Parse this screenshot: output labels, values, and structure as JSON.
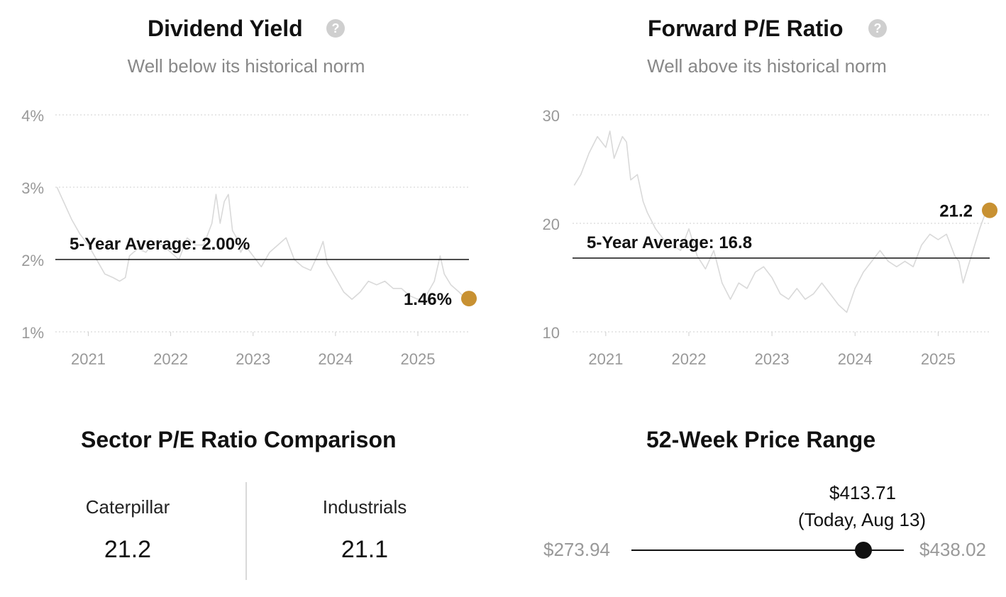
{
  "chart_data": [
    {
      "type": "line",
      "title": "Dividend Yield",
      "subtitle": "Well below its historical norm",
      "y_ticks": [
        "4%",
        "3%",
        "2%",
        "1%"
      ],
      "y_tick_values": [
        4,
        3,
        2,
        1
      ],
      "ylim": [
        1,
        4
      ],
      "x_ticks": [
        "2021",
        "2022",
        "2023",
        "2024",
        "2025"
      ],
      "x_tick_values": [
        2021,
        2022,
        2023,
        2024,
        2025
      ],
      "xlim": [
        2020.6,
        2025.62
      ],
      "grid": true,
      "average": {
        "value": 2.0,
        "label": "5-Year Average: 2.00%"
      },
      "current": {
        "x": 2025.62,
        "y": 1.46,
        "label": "1.46%"
      },
      "color_line": "#d9d9d9",
      "color_marker": "#c89132",
      "series": [
        {
          "x": [
            2020.62,
            2020.7,
            2020.8,
            2020.9,
            2021.0,
            2021.1,
            2021.2,
            2021.3,
            2021.38,
            2021.45,
            2021.5,
            2021.6,
            2021.7,
            2021.8,
            2021.9,
            2022.0,
            2022.1,
            2022.2,
            2022.3,
            2022.4,
            2022.5,
            2022.55,
            2022.6,
            2022.65,
            2022.7,
            2022.75,
            2022.8,
            2022.85,
            2022.9,
            2023.0,
            2023.1,
            2023.2,
            2023.3,
            2023.4,
            2023.5,
            2023.6,
            2023.7,
            2023.8,
            2023.85,
            2023.9,
            2024.0,
            2024.1,
            2024.2,
            2024.3,
            2024.4,
            2024.5,
            2024.6,
            2024.7,
            2024.8,
            2024.9,
            2025.0,
            2025.1,
            2025.2,
            2025.27,
            2025.32,
            2025.4,
            2025.5,
            2025.58
          ],
          "y": [
            3.0,
            2.8,
            2.55,
            2.35,
            2.2,
            2.0,
            1.8,
            1.75,
            1.7,
            1.75,
            2.05,
            2.15,
            2.1,
            2.25,
            2.2,
            2.1,
            2.0,
            2.3,
            2.2,
            2.2,
            2.5,
            2.9,
            2.5,
            2.8,
            2.9,
            2.4,
            2.3,
            2.1,
            2.2,
            2.05,
            1.9,
            2.1,
            2.2,
            2.3,
            2.0,
            1.9,
            1.85,
            2.1,
            2.25,
            1.95,
            1.75,
            1.55,
            1.45,
            1.55,
            1.7,
            1.65,
            1.7,
            1.6,
            1.6,
            1.5,
            1.45,
            1.5,
            1.7,
            2.05,
            1.8,
            1.65,
            1.55,
            1.46
          ]
        }
      ]
    },
    {
      "type": "line",
      "title": "Forward P/E Ratio",
      "subtitle": "Well above its historical norm",
      "y_ticks": [
        "30",
        "20",
        "10"
      ],
      "y_tick_values": [
        30,
        20,
        10
      ],
      "ylim": [
        10,
        30
      ],
      "x_ticks": [
        "2021",
        "2022",
        "2023",
        "2024",
        "2025"
      ],
      "x_tick_values": [
        2021,
        2022,
        2023,
        2024,
        2025
      ],
      "xlim": [
        2020.6,
        2025.62
      ],
      "grid": true,
      "average": {
        "value": 16.8,
        "label": "5-Year Average: 16.8"
      },
      "current": {
        "x": 2025.62,
        "y": 21.2,
        "label": "21.2"
      },
      "color_line": "#d9d9d9",
      "color_marker": "#c89132",
      "series": [
        {
          "x": [
            2020.62,
            2020.7,
            2020.8,
            2020.9,
            2021.0,
            2021.05,
            2021.1,
            2021.2,
            2021.25,
            2021.3,
            2021.38,
            2021.45,
            2021.5,
            2021.6,
            2021.7,
            2021.8,
            2021.9,
            2022.0,
            2022.1,
            2022.2,
            2022.3,
            2022.4,
            2022.5,
            2022.6,
            2022.7,
            2022.8,
            2022.9,
            2023.0,
            2023.1,
            2023.2,
            2023.3,
            2023.4,
            2023.5,
            2023.6,
            2023.7,
            2023.8,
            2023.9,
            2024.0,
            2024.1,
            2024.2,
            2024.3,
            2024.4,
            2024.5,
            2024.6,
            2024.7,
            2024.8,
            2024.9,
            2025.0,
            2025.1,
            2025.2,
            2025.25,
            2025.3,
            2025.4,
            2025.5,
            2025.58
          ],
          "y": [
            23.5,
            24.5,
            26.5,
            28,
            27,
            28.5,
            26,
            28,
            27.5,
            24,
            24.5,
            22,
            21,
            19.5,
            18.5,
            18,
            17.5,
            19.5,
            17,
            15.8,
            17.5,
            14.5,
            13,
            14.5,
            14,
            15.5,
            16,
            15,
            13.5,
            13,
            14,
            13,
            13.5,
            14.5,
            13.5,
            12.5,
            11.8,
            14,
            15.5,
            16.5,
            17.5,
            16.5,
            16,
            16.5,
            16,
            18,
            19,
            18.5,
            19,
            17,
            16.5,
            14.5,
            17,
            19.5,
            21.2
          ]
        }
      ]
    }
  ],
  "sector": {
    "title": "Sector P/E Ratio Comparison",
    "items": [
      {
        "label": "Caterpillar",
        "value": "21.2"
      },
      {
        "label": "Industrials",
        "value": "21.1"
      }
    ]
  },
  "price_range": {
    "title": "52-Week Price Range",
    "low": "$273.94",
    "high": "$438.02",
    "current": "$413.71",
    "current_note": "(Today, Aug 13)",
    "low_value": 273.94,
    "high_value": 438.02,
    "current_value": 413.71
  }
}
